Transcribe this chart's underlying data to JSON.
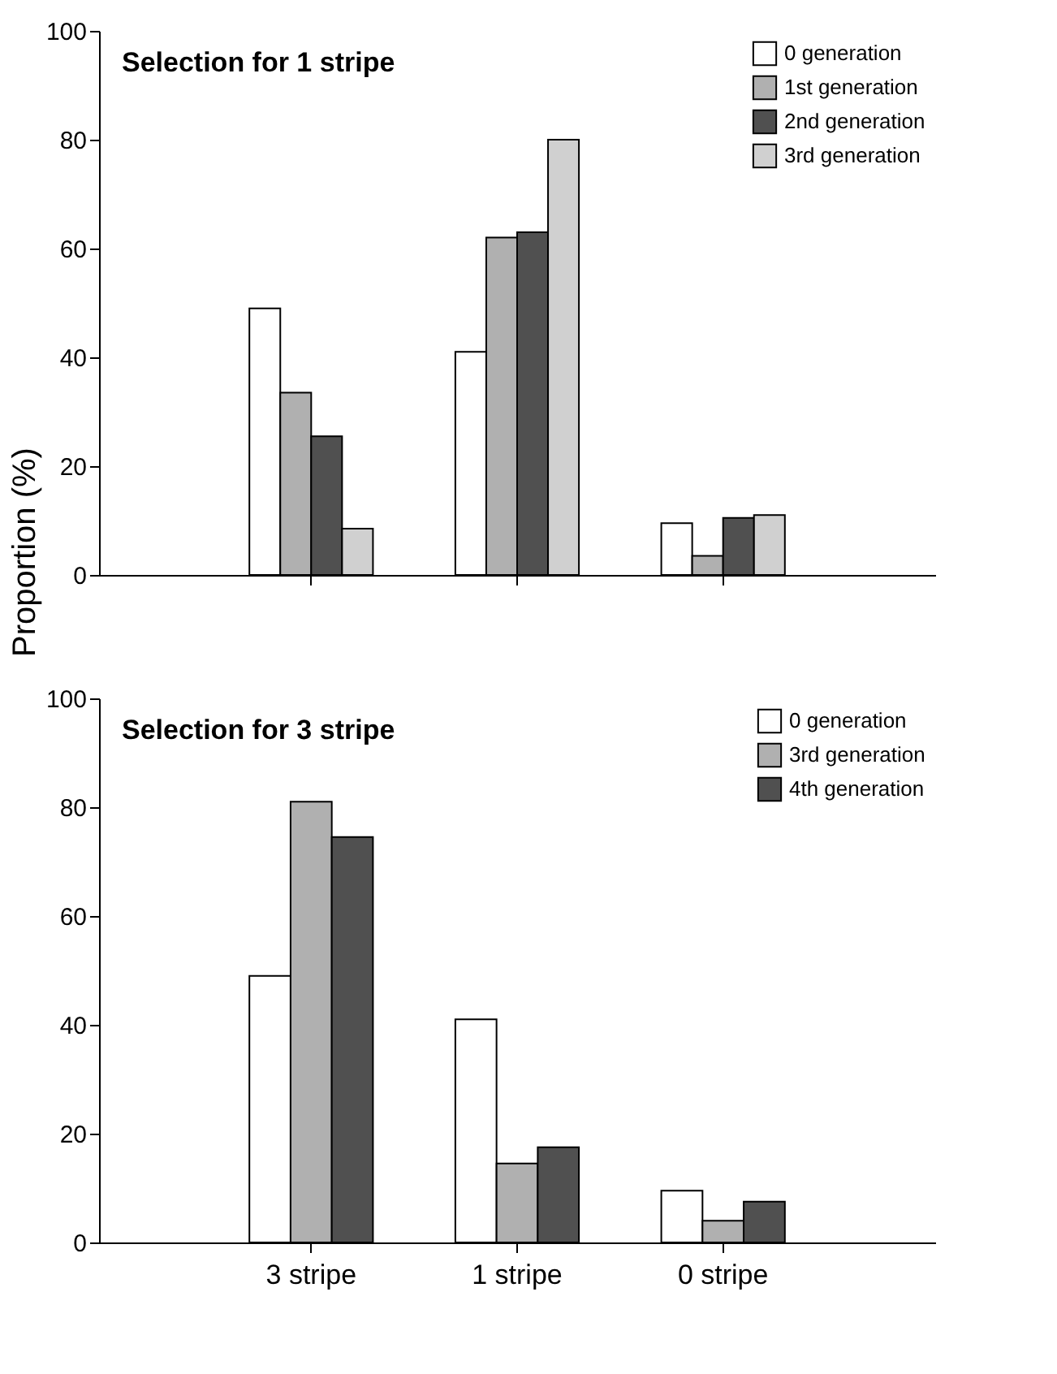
{
  "chart_data": [
    {
      "type": "bar",
      "title": "Selection for 1 stripe",
      "ylabel": "Proportion (%)",
      "categories": [
        null,
        null,
        null
      ],
      "series": [
        {
          "name": "0 generation",
          "color": "#ffffff",
          "values": [
            49,
            41,
            9.5
          ]
        },
        {
          "name": "1st generation",
          "color": "#b0b0b0",
          "values": [
            33.5,
            62,
            3.5
          ]
        },
        {
          "name": "2nd generation",
          "color": "#505050",
          "values": [
            25.5,
            63,
            10.5
          ]
        },
        {
          "name": "3rd generation",
          "color": "#d0d0d0",
          "values": [
            8.5,
            80,
            11
          ]
        }
      ],
      "ylim": [
        0,
        100
      ],
      "yticks": [
        0,
        20,
        40,
        60,
        80,
        100
      ],
      "legend": "top right"
    },
    {
      "type": "bar",
      "title": "Selection for 3 stripe",
      "categories": [
        "3 stripe",
        "1 stripe",
        "0 stripe"
      ],
      "series": [
        {
          "name": "0 generation",
          "color": "#ffffff",
          "values": [
            49,
            41,
            9.5
          ]
        },
        {
          "name": "3rd generation",
          "color": "#b0b0b0",
          "values": [
            81,
            14.5,
            4
          ]
        },
        {
          "name": "4th generation",
          "color": "#505050",
          "values": [
            74.5,
            17.5,
            7.5
          ]
        }
      ],
      "ylim": [
        0,
        100
      ],
      "yticks": [
        0,
        20,
        40,
        60,
        80,
        100
      ],
      "legend": "top right"
    }
  ]
}
